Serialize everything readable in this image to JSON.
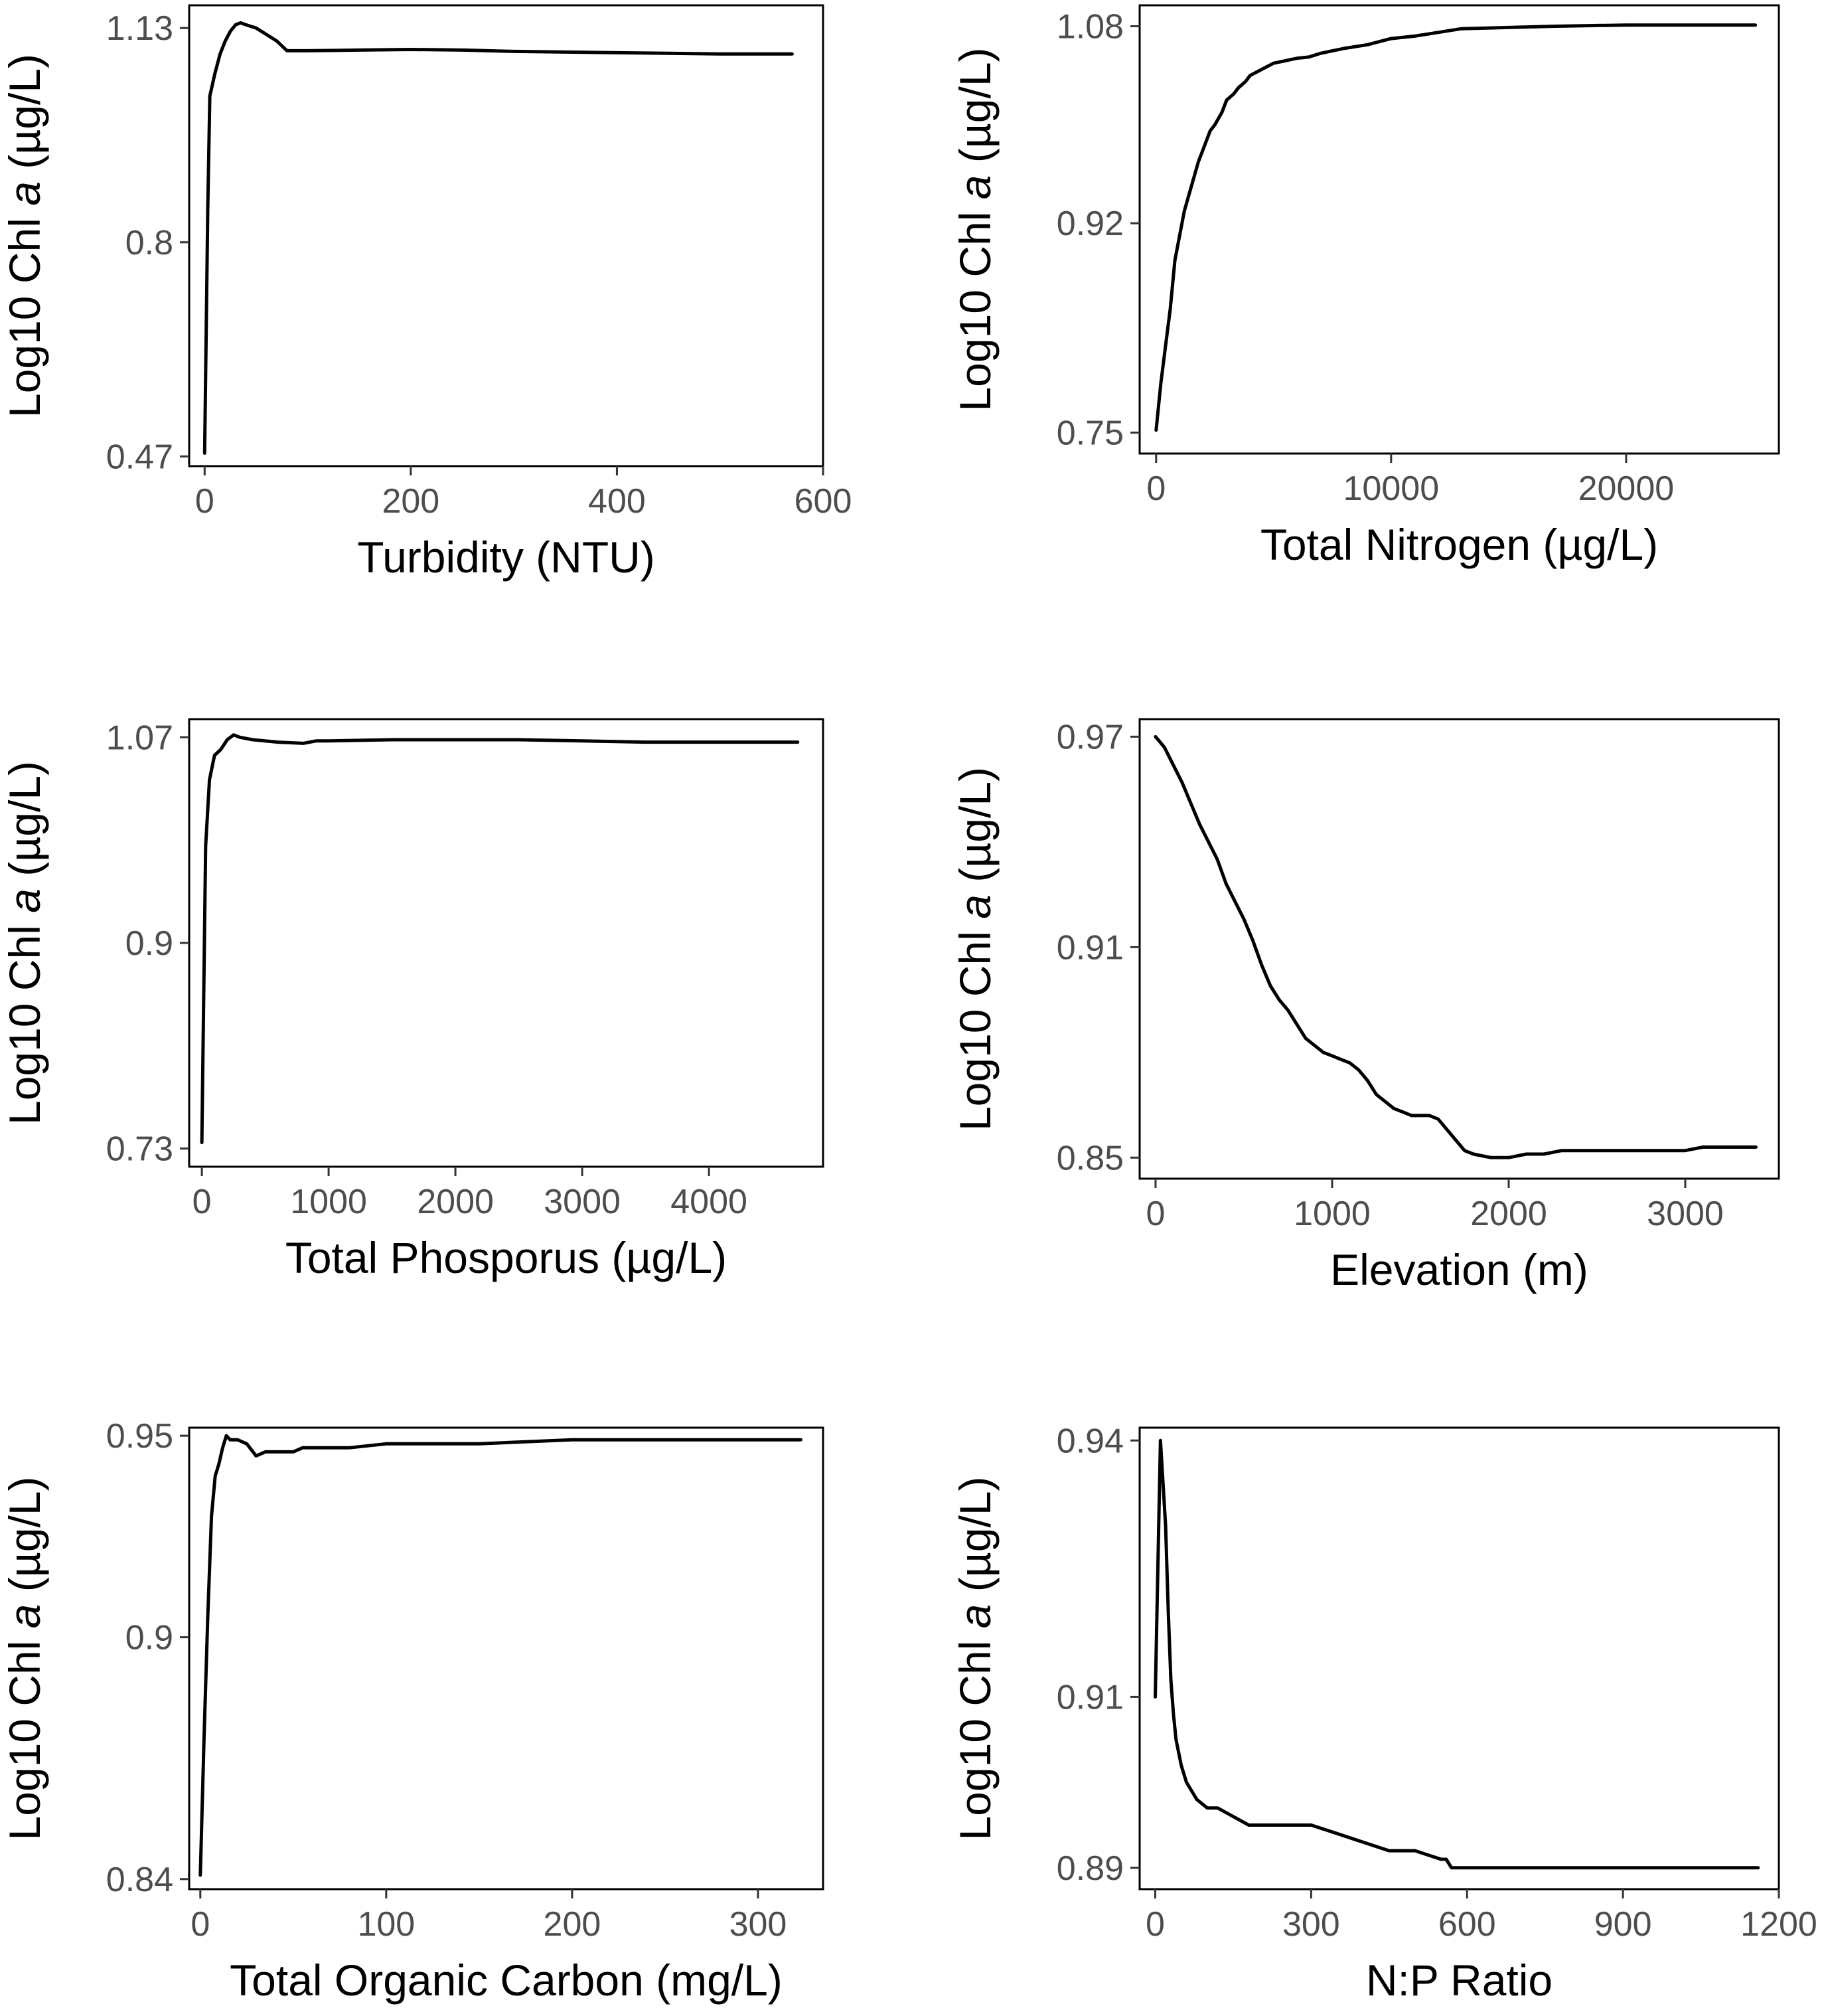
{
  "chart_data": [
    {
      "type": "line",
      "xlabel": "Turbidity (NTU)",
      "ylabel_parts": [
        "Log10 Chl ",
        "a",
        " (µg/L)"
      ],
      "xlim": [
        -15,
        600
      ],
      "ylim": [
        0.455,
        1.165
      ],
      "xticks": [
        0,
        200,
        400,
        600
      ],
      "yticks": [
        0.47,
        0.8,
        1.13
      ],
      "ytick_labels": [
        "0.47",
        "0.8",
        "1.13"
      ],
      "series": [
        {
          "x": [
            0,
            3,
            5,
            10,
            15,
            20,
            25,
            30,
            35,
            40,
            50,
            60,
            70,
            80,
            100,
            150,
            200,
            250,
            300,
            350,
            400,
            450,
            500,
            550,
            570
          ],
          "y": [
            0.475,
            0.85,
            1.025,
            1.06,
            1.09,
            1.11,
            1.125,
            1.135,
            1.138,
            1.135,
            1.13,
            1.12,
            1.11,
            1.095,
            1.095,
            1.096,
            1.097,
            1.096,
            1.094,
            1.093,
            1.092,
            1.091,
            1.09,
            1.09,
            1.09
          ]
        }
      ]
    },
    {
      "type": "line",
      "xlabel": "Total Nitrogen (µg/L)",
      "ylabel_parts": [
        "Log10 Chl ",
        "a",
        " (µg/L)"
      ],
      "xlim": [
        -700,
        26500
      ],
      "ylim": [
        0.733,
        1.097
      ],
      "xticks": [
        0,
        10000,
        20000
      ],
      "yticks": [
        0.75,
        0.92,
        1.08
      ],
      "ytick_labels": [
        "0.75",
        "0.92",
        "1.08"
      ],
      "series": [
        {
          "x": [
            0,
            200,
            400,
            600,
            800,
            1000,
            1200,
            1500,
            1800,
            2000,
            2300,
            2500,
            2800,
            3000,
            3300,
            3500,
            3800,
            4000,
            4500,
            5000,
            5500,
            6000,
            6500,
            7000,
            7500,
            8000,
            9000,
            10000,
            11000,
            12000,
            13000,
            15000,
            17000,
            20000,
            22000,
            25500
          ],
          "y": [
            0.752,
            0.79,
            0.82,
            0.85,
            0.89,
            0.91,
            0.93,
            0.95,
            0.97,
            0.98,
            0.995,
            1.0,
            1.01,
            1.02,
            1.025,
            1.03,
            1.035,
            1.04,
            1.045,
            1.05,
            1.052,
            1.054,
            1.055,
            1.058,
            1.06,
            1.062,
            1.065,
            1.07,
            1.072,
            1.075,
            1.078,
            1.079,
            1.08,
            1.081,
            1.081,
            1.081
          ]
        }
      ]
    },
    {
      "type": "line",
      "xlabel": "Total Phosporus (µg/L)",
      "ylabel_parts": [
        "Log10 Chl ",
        "a",
        " (µg/L)"
      ],
      "xlim": [
        -100,
        4900
      ],
      "ylim": [
        0.715,
        1.085
      ],
      "xticks": [
        0,
        1000,
        2000,
        3000,
        4000
      ],
      "yticks": [
        0.73,
        0.9,
        1.07
      ],
      "ytick_labels": [
        "0.73",
        "0.9",
        "1.07"
      ],
      "series": [
        {
          "x": [
            0,
            30,
            60,
            100,
            150,
            200,
            250,
            300,
            400,
            600,
            800,
            900,
            1000,
            1500,
            2000,
            2500,
            3000,
            3500,
            4000,
            4500,
            4700
          ],
          "y": [
            0.735,
            0.98,
            1.035,
            1.055,
            1.06,
            1.068,
            1.072,
            1.07,
            1.068,
            1.066,
            1.065,
            1.067,
            1.067,
            1.068,
            1.068,
            1.068,
            1.067,
            1.066,
            1.066,
            1.066,
            1.066
          ]
        }
      ]
    },
    {
      "type": "line",
      "xlabel": "Elevation (m)",
      "ylabel_parts": [
        "Log10 Chl ",
        "a",
        " (µg/L)"
      ],
      "xlim": [
        -90,
        3530
      ],
      "ylim": [
        0.844,
        0.975
      ],
      "xticks": [
        0,
        1000,
        2000,
        3000
      ],
      "yticks": [
        0.85,
        0.91,
        0.97
      ],
      "ytick_labels": [
        "0.85",
        "0.91",
        "0.97"
      ],
      "series": [
        {
          "x": [
            0,
            50,
            100,
            150,
            200,
            250,
            300,
            350,
            400,
            450,
            500,
            550,
            600,
            650,
            700,
            750,
            800,
            850,
            900,
            950,
            1000,
            1050,
            1100,
            1150,
            1200,
            1250,
            1300,
            1350,
            1400,
            1450,
            1500,
            1550,
            1600,
            1650,
            1700,
            1750,
            1800,
            1900,
            2000,
            2100,
            2200,
            2300,
            2400,
            2500,
            2600,
            2700,
            2800,
            2900,
            3000,
            3100,
            3200,
            3400
          ],
          "y": [
            0.97,
            0.967,
            0.962,
            0.957,
            0.951,
            0.945,
            0.94,
            0.935,
            0.928,
            0.923,
            0.918,
            0.912,
            0.905,
            0.899,
            0.895,
            0.892,
            0.888,
            0.884,
            0.882,
            0.88,
            0.879,
            0.878,
            0.877,
            0.875,
            0.872,
            0.868,
            0.866,
            0.864,
            0.863,
            0.862,
            0.862,
            0.862,
            0.861,
            0.858,
            0.855,
            0.852,
            0.851,
            0.85,
            0.85,
            0.851,
            0.851,
            0.852,
            0.852,
            0.852,
            0.852,
            0.852,
            0.852,
            0.852,
            0.852,
            0.853,
            0.853,
            0.853
          ]
        }
      ]
    },
    {
      "type": "line",
      "xlabel": "Total Organic Carbon (mg/L)",
      "ylabel_parts": [
        "Log10 Chl ",
        "a",
        " (µg/L)"
      ],
      "xlim": [
        -6,
        335
      ],
      "ylim": [
        0.8375,
        0.952
      ],
      "xticks": [
        0,
        100,
        200,
        300
      ],
      "yticks": [
        0.84,
        0.9,
        0.95
      ],
      "ytick_labels": [
        "0.84",
        "0.9",
        "0.95"
      ],
      "series": [
        {
          "x": [
            0,
            2,
            4,
            6,
            8,
            10,
            12,
            14,
            16,
            18,
            20,
            25,
            30,
            35,
            40,
            45,
            50,
            55,
            60,
            80,
            100,
            150,
            200,
            250,
            300,
            323
          ],
          "y": [
            0.841,
            0.875,
            0.905,
            0.93,
            0.94,
            0.943,
            0.947,
            0.95,
            0.949,
            0.949,
            0.949,
            0.948,
            0.945,
            0.946,
            0.946,
            0.946,
            0.946,
            0.947,
            0.947,
            0.947,
            0.948,
            0.948,
            0.949,
            0.949,
            0.949,
            0.949
          ]
        }
      ]
    },
    {
      "type": "line",
      "xlabel": "N:P Ratio",
      "ylabel_parts": [
        "Log10 Chl ",
        "a",
        " (µg/L)"
      ],
      "xlim": [
        -30,
        1200
      ],
      "ylim": [
        0.8875,
        0.9415
      ],
      "xticks": [
        0,
        300,
        600,
        900,
        1200
      ],
      "yticks": [
        0.89,
        0.91,
        0.94
      ],
      "ytick_labels": [
        "0.89",
        "0.91",
        "0.94"
      ],
      "series": [
        {
          "x": [
            0,
            5,
            10,
            15,
            20,
            25,
            30,
            35,
            40,
            50,
            60,
            70,
            80,
            100,
            120,
            150,
            180,
            200,
            250,
            300,
            350,
            400,
            450,
            500,
            550,
            560,
            570,
            600,
            700,
            800,
            900,
            1000,
            1100,
            1160
          ],
          "y": [
            0.91,
            0.925,
            0.94,
            0.935,
            0.93,
            0.92,
            0.912,
            0.908,
            0.905,
            0.902,
            0.9,
            0.899,
            0.898,
            0.897,
            0.897,
            0.896,
            0.895,
            0.895,
            0.895,
            0.895,
            0.894,
            0.893,
            0.892,
            0.892,
            0.891,
            0.891,
            0.89,
            0.89,
            0.89,
            0.89,
            0.89,
            0.89,
            0.89,
            0.89
          ]
        }
      ]
    }
  ]
}
